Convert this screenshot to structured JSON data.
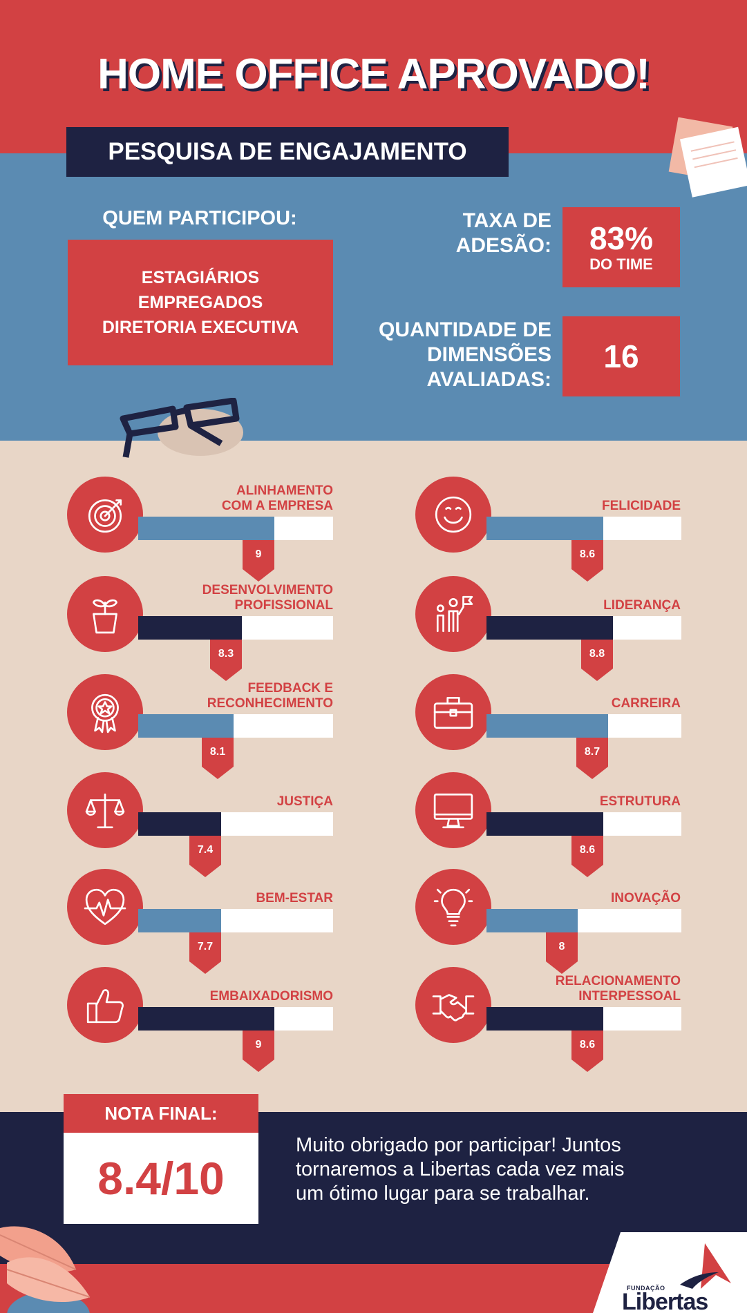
{
  "title": "HOME OFFICE APROVADO!",
  "subtitle": "PESQUISA DE ENGAJAMENTO",
  "participants": {
    "label": "QUEM PARTICIPOU:",
    "groups": [
      "ESTAGIÁRIOS",
      "EMPREGADOS",
      "DIRETORIA EXECUTIVA"
    ]
  },
  "adhesion": {
    "label_lines": [
      "TAXA DE",
      "ADESÃO:"
    ],
    "value": "83%",
    "unit": "DO TIME"
  },
  "dimensions_count": {
    "label_lines": [
      "QUANTIDADE DE",
      "DIMENSÕES",
      "AVALIADAS:"
    ],
    "value": "16"
  },
  "colors": {
    "red": "#d24143",
    "blue": "#5b8bb2",
    "navy": "#1e2242",
    "beige": "#e8d6c7"
  },
  "dimensions_left": [
    {
      "label_lines": [
        "ALINHAMENTO",
        "COM A EMPRESA"
      ],
      "score_text": "9",
      "score": 9,
      "bar_color": "blue",
      "icon": "target-icon"
    },
    {
      "label_lines": [
        "DESENVOLVIMENTO",
        "PROFISSIONAL"
      ],
      "score_text": "8.3",
      "score": 8.3,
      "bar_color": "navy",
      "icon": "plant-pot-icon"
    },
    {
      "label_lines": [
        "FEEDBACK E",
        "RECONHECIMENTO"
      ],
      "score_text": "8.1",
      "score": 8.1,
      "bar_color": "blue",
      "icon": "award-ribbon-icon"
    },
    {
      "label_lines": [
        "JUSTIÇA"
      ],
      "score_text": "7.4",
      "score": 7.4,
      "bar_color": "navy",
      "icon": "scales-icon"
    },
    {
      "label_lines": [
        "BEM-ESTAR"
      ],
      "score_text": "7.7",
      "score": 7.7,
      "bar_color": "blue",
      "icon": "heartbeat-icon"
    },
    {
      "label_lines": [
        "EMBAIXADORISMO"
      ],
      "score_text": "9",
      "score": 9,
      "bar_color": "navy",
      "icon": "thumbs-up-icon"
    }
  ],
  "dimensions_right": [
    {
      "label_lines": [
        "FELICIDADE"
      ],
      "score_text": "8.6",
      "score": 8.6,
      "bar_color": "blue",
      "icon": "smiley-icon"
    },
    {
      "label_lines": [
        "LIDERANÇA"
      ],
      "score_text": "8.8",
      "score": 8.8,
      "bar_color": "navy",
      "icon": "leader-flag-icon"
    },
    {
      "label_lines": [
        "CARREIRA"
      ],
      "score_text": "8.7",
      "score": 8.7,
      "bar_color": "blue",
      "icon": "briefcase-icon"
    },
    {
      "label_lines": [
        "ESTRUTURA"
      ],
      "score_text": "8.6",
      "score": 8.6,
      "bar_color": "navy",
      "icon": "monitor-icon"
    },
    {
      "label_lines": [
        "INOVAÇÃO"
      ],
      "score_text": "8",
      "score": 8,
      "bar_color": "blue",
      "icon": "lightbulb-icon"
    },
    {
      "label_lines": [
        "RELACIONAMENTO",
        "INTERPESSOAL"
      ],
      "score_text": "8.6",
      "score": 8.6,
      "bar_color": "navy",
      "icon": "handshake-icon"
    }
  ],
  "final": {
    "label": "NOTA FINAL:",
    "value": "8.4/10"
  },
  "thanks_lines": [
    "Muito obrigado por participar! Juntos",
    "tornaremos a Libertas cada vez mais",
    "um ótimo lugar para se trabalhar."
  ],
  "logo": {
    "small": "FUNDAÇÃO",
    "big": "Libertas"
  }
}
